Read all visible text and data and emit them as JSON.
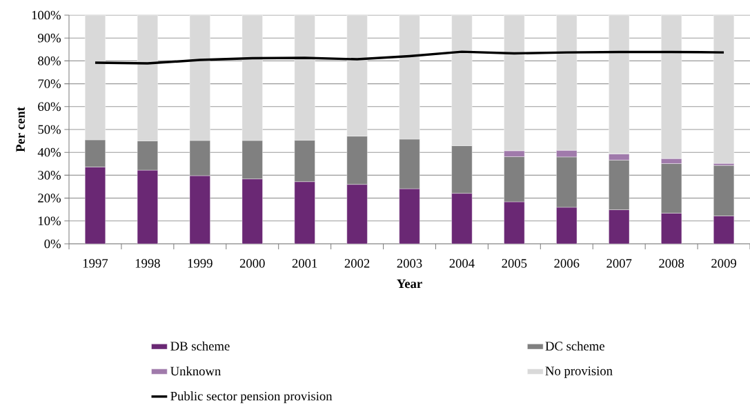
{
  "chart_data": {
    "type": "bar",
    "stacked": true,
    "xlabel": "Year",
    "ylabel": "Per cent",
    "categories": [
      "1997",
      "1998",
      "1999",
      "2000",
      "2001",
      "2002",
      "2003",
      "2004",
      "2005",
      "2006",
      "2007",
      "2008",
      "2009"
    ],
    "series": [
      {
        "name": "DB scheme",
        "color": "#6a2874",
        "values": [
          33.6,
          32.2,
          29.8,
          28.4,
          27.2,
          26.0,
          24.1,
          22.1,
          18.4,
          16.0,
          14.9,
          13.4,
          12.2
        ]
      },
      {
        "name": "DC scheme",
        "color": "#808080",
        "values": [
          11.9,
          12.8,
          15.4,
          16.8,
          18.1,
          21.1,
          21.7,
          20.8,
          19.7,
          22.0,
          21.7,
          21.7,
          22.1
        ]
      },
      {
        "name": "Unknown",
        "color": "#a07aab",
        "values": [
          0,
          0,
          0,
          0,
          0,
          0,
          0,
          0,
          2.6,
          2.9,
          2.7,
          2.2,
          0.9
        ]
      },
      {
        "name": "No provision",
        "color": "#d9d9d9",
        "values": [
          54.5,
          55.0,
          54.8,
          54.8,
          54.7,
          52.9,
          54.2,
          57.1,
          59.3,
          59.1,
          60.7,
          62.7,
          64.8
        ]
      },
      {
        "name": "Public sector pension provision",
        "type": "line",
        "color": "#000000",
        "values": [
          79.2,
          78.9,
          80.4,
          81.2,
          81.3,
          80.7,
          82.1,
          84.0,
          83.3,
          83.7,
          83.9,
          83.9,
          83.7
        ]
      }
    ],
    "ylim": [
      0,
      100
    ],
    "yticks": [
      {
        "value": 0,
        "label": "0%"
      },
      {
        "value": 10,
        "label": "10%"
      },
      {
        "value": 20,
        "label": "20%"
      },
      {
        "value": 30,
        "label": "30%"
      },
      {
        "value": 40,
        "label": "40%"
      },
      {
        "value": 50,
        "label": "50%"
      },
      {
        "value": 60,
        "label": "60%"
      },
      {
        "value": 70,
        "label": "70%"
      },
      {
        "value": 80,
        "label": "80%"
      },
      {
        "value": 90,
        "label": "90%"
      },
      {
        "value": 100,
        "label": "100%"
      }
    ],
    "grid": "y",
    "legend": "bottom"
  }
}
